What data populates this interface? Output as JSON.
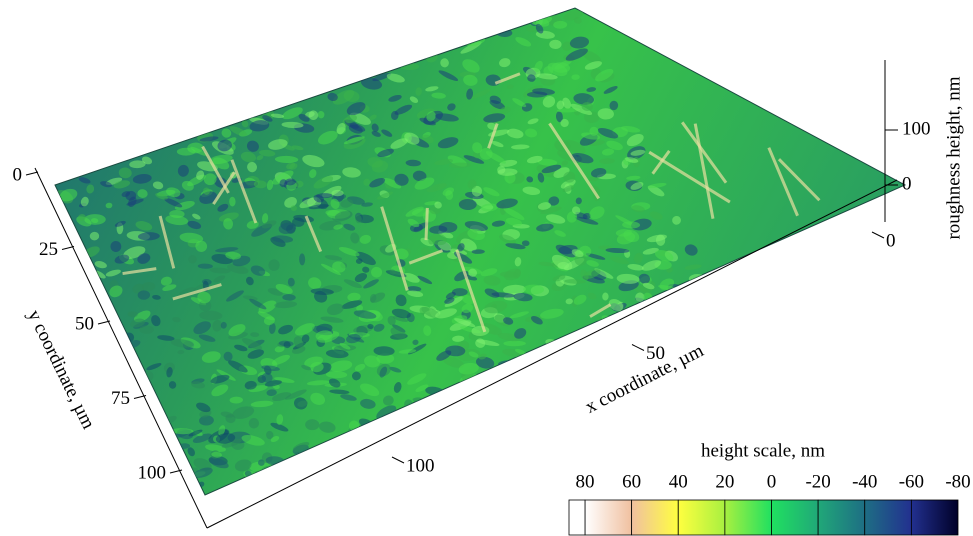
{
  "chart_data": {
    "type": "surface3d",
    "x_label": "x coordinate, µm",
    "y_label": "y coordinate, µm",
    "z_label": "roughness height, nm",
    "xlim": [
      0,
      100
    ],
    "xticks": [
      0,
      50,
      100
    ],
    "ylim": [
      0,
      100
    ],
    "yticks": [
      0,
      25,
      50,
      75,
      100
    ],
    "zlim": [
      0,
      100
    ],
    "zticks": [
      0,
      100
    ],
    "colorbar": {
      "title": "height scale, nm",
      "ticks": [
        80,
        60,
        40,
        20,
        0,
        -20,
        -40,
        -60,
        -80
      ],
      "colors": [
        "#ffffff",
        "#f0c0a0",
        "#ffff40",
        "#a8f040",
        "#20e060",
        "#20a878",
        "#1e6e84",
        "#22308f",
        "#000028"
      ]
    }
  }
}
